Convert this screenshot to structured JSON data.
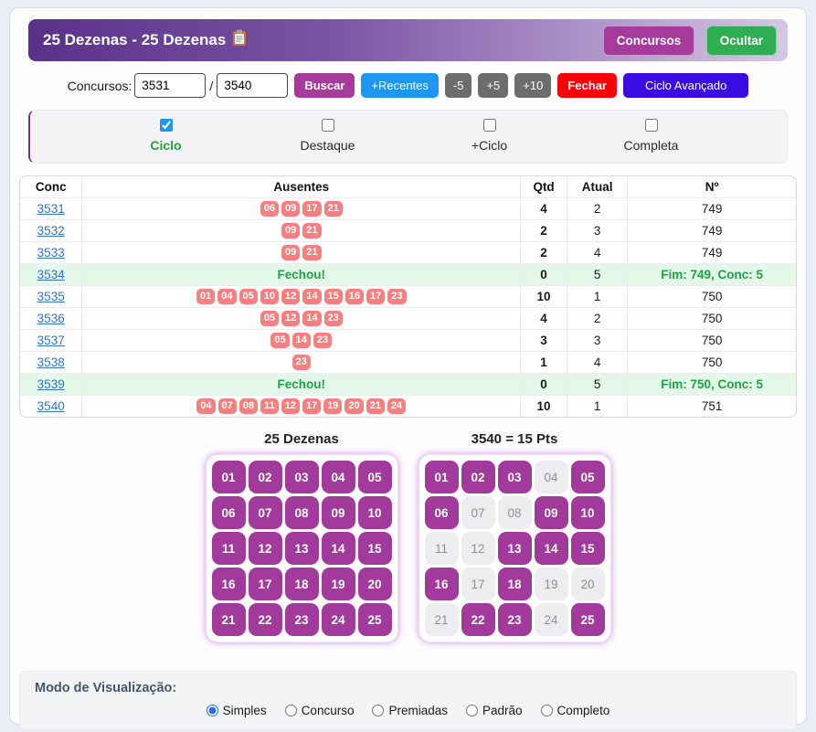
{
  "header": {
    "title": "25 Dezenas - 25 Dezenas",
    "title_icon": "clipboard-icon",
    "concursos_button": "Concursos",
    "ocultar_button": "Ocultar"
  },
  "controls": {
    "label": "Concursos:",
    "from_value": "3531",
    "separator": "/",
    "to_value": "3540",
    "buscar_button": "Buscar",
    "recentes_button": "+Recentes",
    "minus5_button": "-5",
    "plus5_button": "+5",
    "plus10_button": "+10",
    "fechar_button": "Fechar",
    "ciclo_avancado_button": "Ciclo Avançado"
  },
  "filters": [
    {
      "label": "Ciclo",
      "checked": true,
      "highlight": true
    },
    {
      "label": "Destaque",
      "checked": false,
      "highlight": false
    },
    {
      "label": "+Ciclo",
      "checked": false,
      "highlight": false
    },
    {
      "label": "Completa",
      "checked": false,
      "highlight": false
    }
  ],
  "table": {
    "headers": [
      "Conc",
      "Ausentes",
      "Qtd",
      "Atual",
      "Nº"
    ],
    "fechou_label": "Fechou!",
    "rows": [
      {
        "conc": "3531",
        "ausentes": [
          "06",
          "09",
          "17",
          "21"
        ],
        "qtd": "4",
        "atual": "2",
        "no": "749",
        "closed": false
      },
      {
        "conc": "3532",
        "ausentes": [
          "09",
          "21"
        ],
        "qtd": "2",
        "atual": "3",
        "no": "749",
        "closed": false
      },
      {
        "conc": "3533",
        "ausentes": [
          "09",
          "21"
        ],
        "qtd": "2",
        "atual": "4",
        "no": "749",
        "closed": false
      },
      {
        "conc": "3534",
        "ausentes": [],
        "qtd": "0",
        "atual": "5",
        "no": "Fim: 749, Conc: 5",
        "closed": true
      },
      {
        "conc": "3535",
        "ausentes": [
          "01",
          "04",
          "05",
          "10",
          "12",
          "14",
          "15",
          "16",
          "17",
          "23"
        ],
        "qtd": "10",
        "atual": "1",
        "no": "750",
        "closed": false
      },
      {
        "conc": "3536",
        "ausentes": [
          "05",
          "12",
          "14",
          "23"
        ],
        "qtd": "4",
        "atual": "2",
        "no": "750",
        "closed": false
      },
      {
        "conc": "3537",
        "ausentes": [
          "05",
          "14",
          "23"
        ],
        "qtd": "3",
        "atual": "3",
        "no": "750",
        "closed": false
      },
      {
        "conc": "3538",
        "ausentes": [
          "23"
        ],
        "qtd": "1",
        "atual": "4",
        "no": "750",
        "closed": false
      },
      {
        "conc": "3539",
        "ausentes": [],
        "qtd": "0",
        "atual": "5",
        "no": "Fim: 750, Conc: 5",
        "closed": true
      },
      {
        "conc": "3540",
        "ausentes": [
          "04",
          "07",
          "08",
          "11",
          "12",
          "17",
          "19",
          "20",
          "21",
          "24"
        ],
        "qtd": "10",
        "atual": "1",
        "no": "751",
        "closed": false
      }
    ]
  },
  "grids": {
    "numbers": [
      "01",
      "02",
      "03",
      "04",
      "05",
      "06",
      "07",
      "08",
      "09",
      "10",
      "11",
      "12",
      "13",
      "14",
      "15",
      "16",
      "17",
      "18",
      "19",
      "20",
      "21",
      "22",
      "23",
      "24",
      "25"
    ],
    "left": {
      "title": "25 Dezenas",
      "marked": [
        "01",
        "02",
        "03",
        "04",
        "05",
        "06",
        "07",
        "08",
        "09",
        "10",
        "11",
        "12",
        "13",
        "14",
        "15",
        "16",
        "17",
        "18",
        "19",
        "20",
        "21",
        "22",
        "23",
        "24",
        "25"
      ]
    },
    "right": {
      "title": "3540 = 15 Pts",
      "marked": [
        "01",
        "02",
        "03",
        "05",
        "06",
        "09",
        "10",
        "13",
        "14",
        "15",
        "16",
        "18",
        "22",
        "23",
        "25"
      ]
    }
  },
  "view_mode": {
    "label": "Modo de Visualização:",
    "options": [
      {
        "label": "Simples",
        "selected": true
      },
      {
        "label": "Concurso",
        "selected": false
      },
      {
        "label": "Premiadas",
        "selected": false
      },
      {
        "label": "Padrão",
        "selected": false
      },
      {
        "label": "Completo",
        "selected": false
      }
    ]
  },
  "colors": {
    "header_gradient_start": "#5a3188",
    "header_gradient_end": "#d4c8e4",
    "concursos_button": "#a53c9c",
    "ocultar_button": "#2fad52",
    "buscar_button": "#a53c9c",
    "recentes_button": "#1e97f3",
    "step_buttons": "#6d6d6d",
    "fechar_button": "#fb0007",
    "ciclo_avancado_button": "#3a0ce2",
    "absent_badge": "#f87f7f",
    "closed_row_bg": "#e4f8e9",
    "closed_text": "#1ea344",
    "marked_cell": "#a23a9c",
    "unmarked_cell": "#ededf0",
    "link": "#3572c6",
    "ciclo_label": "#1fa43d"
  }
}
